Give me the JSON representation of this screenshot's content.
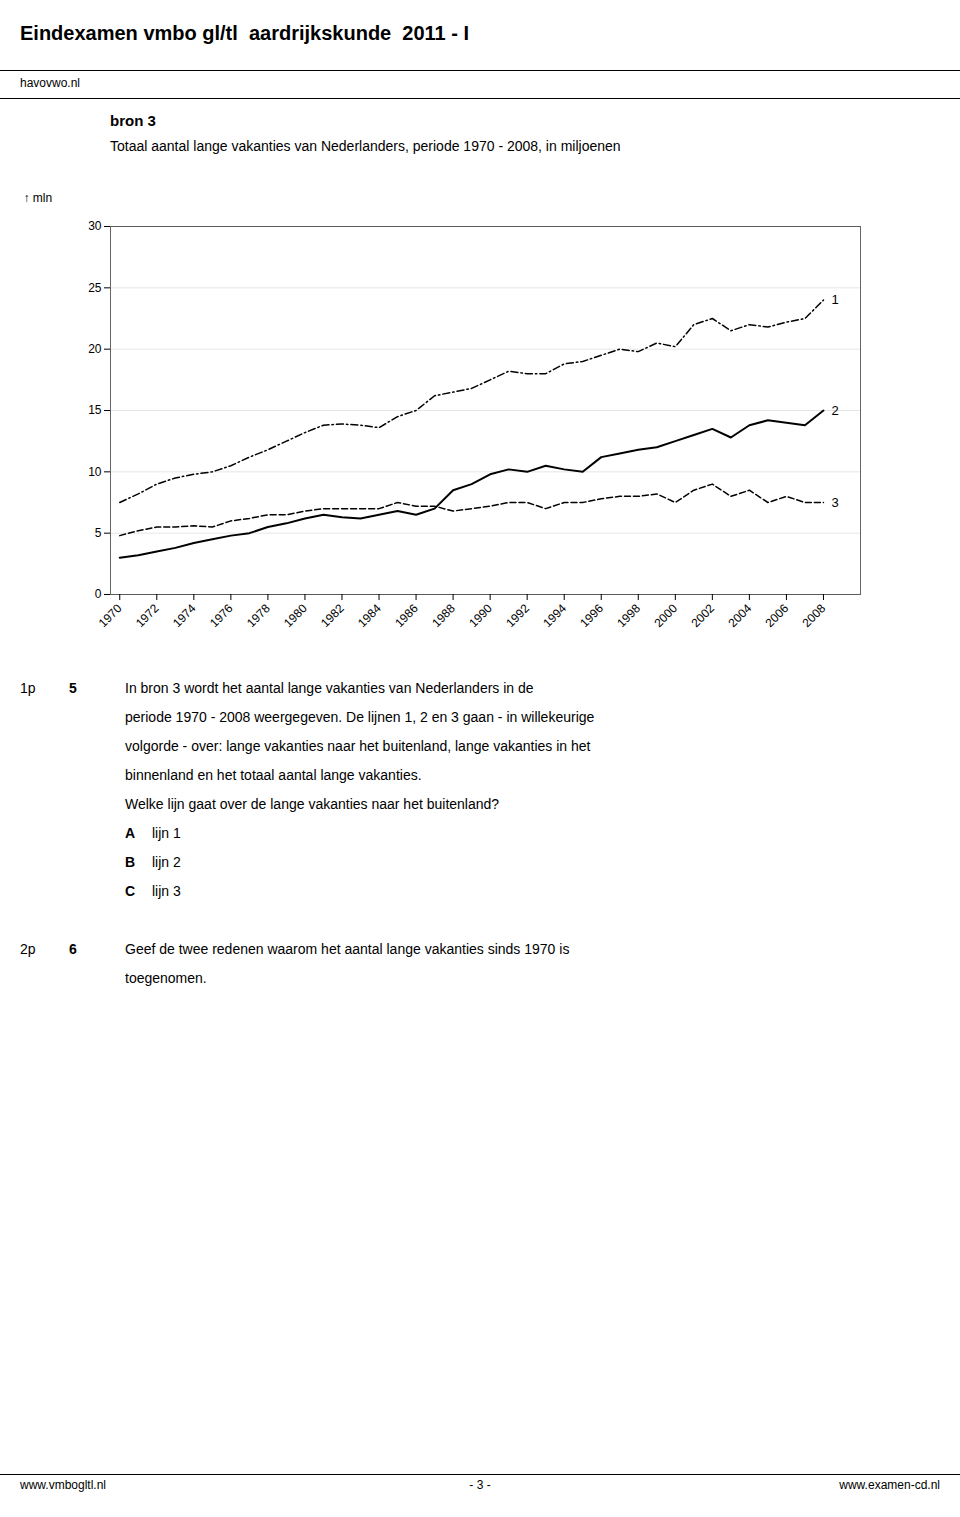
{
  "chart_data": {
    "type": "line",
    "title": "Totaal aantal lange vakanties van Nederlanders, periode 1970 - 2008, in miljoenen",
    "subtitle": "bron 3",
    "ylabel": "mln",
    "x": [
      1970,
      1971,
      1972,
      1973,
      1974,
      1975,
      1976,
      1977,
      1978,
      1979,
      1980,
      1981,
      1982,
      1983,
      1984,
      1985,
      1986,
      1987,
      1988,
      1989,
      1990,
      1991,
      1992,
      1993,
      1994,
      1995,
      1996,
      1997,
      1998,
      1999,
      2000,
      2001,
      2002,
      2003,
      2004,
      2005,
      2006,
      2007,
      2008
    ],
    "series": [
      {
        "name": "1",
        "color": "#000000",
        "line_style": "dashdot",
        "values": [
          7.5,
          8.2,
          9.0,
          9.5,
          9.8,
          10.0,
          10.5,
          11.2,
          11.8,
          12.5,
          13.2,
          13.8,
          13.9,
          13.8,
          13.6,
          14.5,
          15.0,
          16.2,
          16.5,
          16.8,
          17.5,
          18.2,
          18.0,
          18.0,
          18.8,
          19.0,
          19.5,
          20.0,
          19.8,
          20.5,
          20.2,
          22.0,
          22.5,
          21.5,
          22.0,
          21.8,
          22.2,
          22.5,
          24.0
        ]
      },
      {
        "name": "2",
        "color": "#000000",
        "line_style": "solid",
        "values": [
          3.0,
          3.2,
          3.5,
          3.8,
          4.2,
          4.5,
          4.8,
          5.0,
          5.5,
          5.8,
          6.2,
          6.5,
          6.3,
          6.2,
          6.5,
          6.8,
          6.5,
          7.0,
          8.5,
          9.0,
          9.8,
          10.2,
          10.0,
          10.5,
          10.2,
          10.0,
          11.2,
          11.5,
          11.8,
          12.0,
          12.5,
          13.0,
          13.5,
          12.8,
          13.8,
          14.2,
          14.0,
          13.8,
          15.0
        ]
      },
      {
        "name": "3",
        "color": "#000000",
        "line_style": "dashed",
        "values": [
          4.8,
          5.2,
          5.5,
          5.5,
          5.6,
          5.5,
          6.0,
          6.2,
          6.5,
          6.5,
          6.8,
          7.0,
          7.0,
          7.0,
          7.0,
          7.5,
          7.2,
          7.2,
          6.8,
          7.0,
          7.2,
          7.5,
          7.5,
          7.0,
          7.5,
          7.5,
          7.8,
          8.0,
          8.0,
          8.2,
          7.5,
          8.5,
          9.0,
          8.0,
          8.5,
          7.5,
          8.0,
          7.5,
          7.5
        ]
      }
    ],
    "xlim": [
      1969.5,
      2010
    ],
    "xticks": [
      1970,
      1972,
      1974,
      1976,
      1978,
      1980,
      1982,
      1984,
      1986,
      1988,
      1990,
      1992,
      1994,
      1996,
      1998,
      2000,
      2002,
      2004,
      2006,
      2008
    ],
    "ylim": [
      0,
      30
    ],
    "yticks": [
      0,
      5,
      10,
      15,
      20,
      25,
      30
    ],
    "grid": true,
    "annotations": {
      "header": [
        "Eindexamen vmbo gl/tl  aardrijkskunde  2011 - I",
        "havovwo.nl"
      ],
      "questions": [
        [
          [
            "1p",
            "5",
            "In bron 3 wordt het aantal lange vakanties van Nederlanders in de"
          ],
          [
            "periode 1970 - 2008 weergegeven. De lijnen 1, 2 en 3 gaan - in willekeurige"
          ],
          [
            "volgorde - over: lange vakanties naar het buitenland, lange vakanties in het"
          ],
          [
            "binnenland en het totaal aantal lange vakanties."
          ],
          [
            "Welke lijn gaat over de lange vakanties naar het buitenland?"
          ],
          [
            "A",
            "lijn 1"
          ],
          [
            "B",
            "lijn 2"
          ],
          [
            "C",
            "lijn 3"
          ]
        ],
        [
          [
            "2p",
            "6",
            "Geef de twee redenen waarom het aantal lange vakanties sinds 1970 is"
          ],
          [
            "toegenomen."
          ]
        ]
      ],
      "footer": [
        "www.vmbogltl.nl",
        "- 3 -",
        "www.examen-cd.nl"
      ]
    }
  }
}
